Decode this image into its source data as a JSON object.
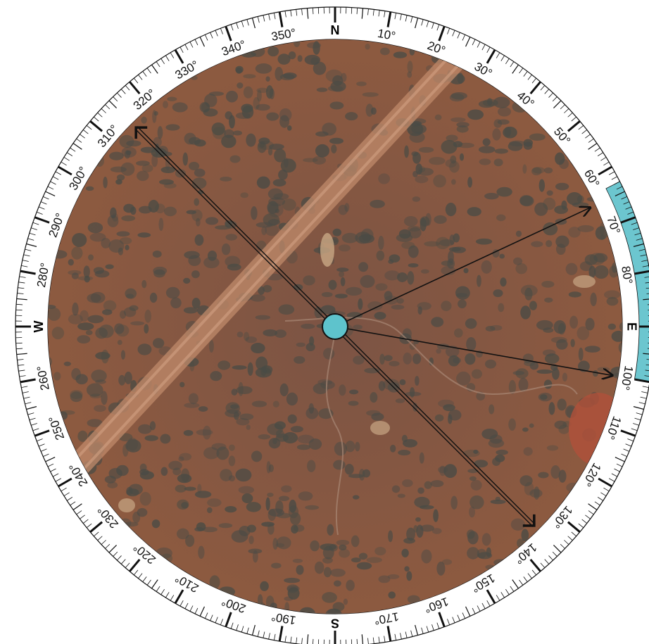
{
  "compass": {
    "cardinals": [
      {
        "label": "N",
        "bearing": 0
      },
      {
        "label": "E",
        "bearing": 90
      },
      {
        "label": "S",
        "bearing": 180
      },
      {
        "label": "W",
        "bearing": 270
      }
    ],
    "degree_labels": [
      {
        "bearing": 10,
        "label": "10°"
      },
      {
        "bearing": 20,
        "label": "20°"
      },
      {
        "bearing": 30,
        "label": "30°"
      },
      {
        "bearing": 40,
        "label": "40°"
      },
      {
        "bearing": 50,
        "label": "50°"
      },
      {
        "bearing": 60,
        "label": "60°"
      },
      {
        "bearing": 70,
        "label": "70°"
      },
      {
        "bearing": 80,
        "label": "80°"
      },
      {
        "bearing": 100,
        "label": "100°"
      },
      {
        "bearing": 110,
        "label": "110°"
      },
      {
        "bearing": 120,
        "label": "120°"
      },
      {
        "bearing": 130,
        "label": "130°"
      },
      {
        "bearing": 140,
        "label": "140°"
      },
      {
        "bearing": 150,
        "label": "150°"
      },
      {
        "bearing": 160,
        "label": "160°"
      },
      {
        "bearing": 170,
        "label": "170°"
      },
      {
        "bearing": 190,
        "label": "190°"
      },
      {
        "bearing": 200,
        "label": "200°"
      },
      {
        "bearing": 210,
        "label": "210°"
      },
      {
        "bearing": 220,
        "label": "220°"
      },
      {
        "bearing": 230,
        "label": "230°"
      },
      {
        "bearing": 240,
        "label": "240°"
      },
      {
        "bearing": 250,
        "label": "250°"
      },
      {
        "bearing": 260,
        "label": "260°"
      },
      {
        "bearing": 280,
        "label": "280°"
      },
      {
        "bearing": 290,
        "label": "290°"
      },
      {
        "bearing": 300,
        "label": "300°"
      },
      {
        "bearing": 310,
        "label": "310°"
      },
      {
        "bearing": 320,
        "label": "320°"
      },
      {
        "bearing": 330,
        "label": "330°"
      },
      {
        "bearing": 340,
        "label": "340°"
      },
      {
        "bearing": 350,
        "label": "350°"
      }
    ],
    "highlight_arc": {
      "from_bearing": 63,
      "to_bearing": 100,
      "color": "#6cc6cf"
    },
    "rays": [
      {
        "name": "ray-315",
        "bearing": 315,
        "style": "double"
      },
      {
        "name": "ray-135",
        "bearing": 135,
        "style": "double"
      },
      {
        "name": "ray-65",
        "bearing": 65,
        "style": "single"
      },
      {
        "name": "ray-100",
        "bearing": 100,
        "style": "single"
      }
    ],
    "observer_color": "#5ec3cc"
  },
  "map": {
    "terrain_color": "#8a5a43",
    "vegetation_color": "#4a4b45",
    "road_color": "#c08a6a"
  }
}
